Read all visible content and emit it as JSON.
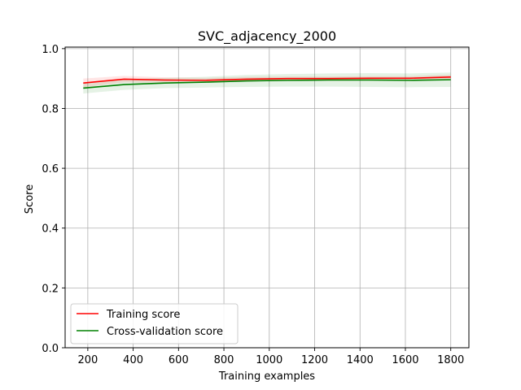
{
  "chart_data": {
    "type": "line",
    "title": "SVC_adjacency_2000",
    "xlabel": "Training examples",
    "ylabel": "Score",
    "xlim": [
      100,
      1880
    ],
    "ylim": [
      0.0,
      1.005
    ],
    "xticks": [
      200,
      400,
      600,
      800,
      1000,
      1200,
      1400,
      1600,
      1800
    ],
    "yticks": [
      0.0,
      0.2,
      0.4,
      0.6,
      0.8,
      1.0
    ],
    "xtick_labels": [
      "200",
      "400",
      "600",
      "800",
      "1000",
      "1200",
      "1400",
      "1600",
      "1800"
    ],
    "ytick_labels": [
      "0.0",
      "0.2",
      "0.4",
      "0.6",
      "0.8",
      "1.0"
    ],
    "grid": true,
    "legend_position": "lower-left",
    "x": [
      180,
      360,
      540,
      720,
      900,
      1080,
      1260,
      1440,
      1620,
      1800
    ],
    "series": [
      {
        "name": "Training score",
        "color": "#ff0000",
        "values": [
          0.885,
          0.898,
          0.895,
          0.894,
          0.898,
          0.9,
          0.9,
          0.901,
          0.901,
          0.905
        ],
        "band_lower": [
          0.87,
          0.887,
          0.886,
          0.886,
          0.89,
          0.893,
          0.893,
          0.894,
          0.894,
          0.897
        ],
        "band_upper": [
          0.9,
          0.909,
          0.904,
          0.902,
          0.906,
          0.907,
          0.907,
          0.908,
          0.908,
          0.913
        ]
      },
      {
        "name": "Cross-validation score",
        "color": "#008000",
        "values": [
          0.868,
          0.88,
          0.885,
          0.888,
          0.892,
          0.894,
          0.895,
          0.895,
          0.894,
          0.896
        ],
        "band_lower": [
          0.85,
          0.862,
          0.868,
          0.87,
          0.872,
          0.873,
          0.873,
          0.872,
          0.871,
          0.872
        ],
        "band_upper": [
          0.886,
          0.898,
          0.902,
          0.906,
          0.912,
          0.915,
          0.917,
          0.918,
          0.917,
          0.92
        ]
      }
    ]
  }
}
